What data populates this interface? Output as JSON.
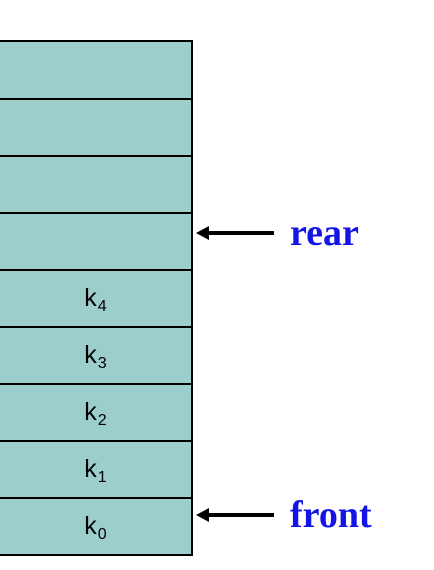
{
  "diagram": {
    "cells": [
      {
        "base": "",
        "sub": ""
      },
      {
        "base": "",
        "sub": ""
      },
      {
        "base": "",
        "sub": ""
      },
      {
        "base": "",
        "sub": ""
      },
      {
        "base": "k",
        "sub": "4"
      },
      {
        "base": "k",
        "sub": "3"
      },
      {
        "base": "k",
        "sub": "2"
      },
      {
        "base": "k",
        "sub": "1"
      },
      {
        "base": "k",
        "sub": "0"
      }
    ],
    "rear_label": "rear",
    "front_label": "front",
    "colors": {
      "cell_fill": "#9ccfcc",
      "label": "#1414e6"
    }
  }
}
